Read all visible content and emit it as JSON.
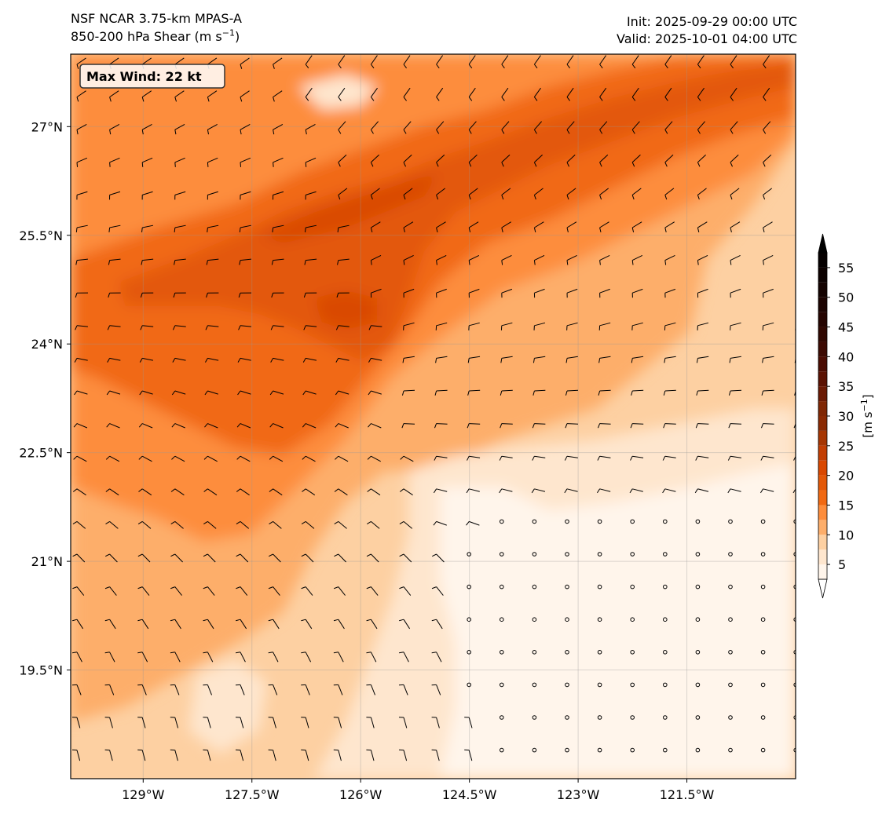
{
  "header": {
    "model": "NSF NCAR 3.75-km MPAS-A",
    "field": "850-200 hPa Shear (m s",
    "field_sup": "−1",
    "field_end": ")",
    "init": "Init: 2025-09-29 00:00 UTC",
    "valid": "Valid: 2025-10-01 04:00 UTC"
  },
  "annotation": {
    "max_wind": "Max Wind: 22 kt"
  },
  "map": {
    "lon_range": [
      -130.0,
      -120.0
    ],
    "lat_range": [
      18.0,
      28.0
    ],
    "lon_ticks": [
      {
        "value": -129.0,
        "label": "129°W"
      },
      {
        "value": -127.5,
        "label": "127.5°W"
      },
      {
        "value": -126.0,
        "label": "126°W"
      },
      {
        "value": -124.5,
        "label": "124.5°W"
      },
      {
        "value": -123.0,
        "label": "123°W"
      },
      {
        "value": -121.5,
        "label": "121.5°W"
      }
    ],
    "lat_ticks": [
      {
        "value": 27.0,
        "label": "27°N"
      },
      {
        "value": 25.5,
        "label": "25.5°N"
      },
      {
        "value": 24.0,
        "label": "24°N"
      },
      {
        "value": 22.5,
        "label": "22.5°N"
      },
      {
        "value": 21.0,
        "label": "21°N"
      },
      {
        "value": 19.5,
        "label": "19.5°N"
      }
    ],
    "gridlines": true
  },
  "colorbar": {
    "unit": "[m s",
    "unit_sup": "−1",
    "unit_end": "]",
    "ticks": [
      "5",
      "10",
      "15",
      "20",
      "25",
      "30",
      "35",
      "40",
      "45",
      "50",
      "55"
    ],
    "levels": [
      2.5,
      5,
      7.5,
      10,
      12.5,
      15,
      17.5,
      20,
      22.5,
      25,
      27.5,
      30,
      32.5,
      35,
      37.5,
      40,
      42.5,
      45,
      47.5,
      50,
      52.5,
      55,
      57.5
    ],
    "colors": [
      "#fff5eb",
      "#fee6ce",
      "#fdd0a2",
      "#fdae6b",
      "#fd8d3c",
      "#f16913",
      "#e35808",
      "#d94801",
      "#c23e03",
      "#a63603",
      "#8a2a03",
      "#7f2704",
      "#6a1a04",
      "#5a1203",
      "#4a0c02",
      "#3c0a02",
      "#300801",
      "#250501",
      "#1c0401",
      "#140301",
      "#0c0100",
      "#050000"
    ]
  },
  "chart_data": {
    "type": "heatmap",
    "field": "850-200 hPa wind shear magnitude",
    "units": "m s-1",
    "max_wind_kt": 22,
    "shear_bands": [
      {
        "region": "band from 24°N 130°W toward 28°N 120°W (core)",
        "approx_value": 17.5
      },
      {
        "region": "northwest and central ocean",
        "approx_value": 12.5
      },
      {
        "region": "southeast quadrant near 21°N 123°W",
        "approx_value": 2.5
      }
    ]
  }
}
